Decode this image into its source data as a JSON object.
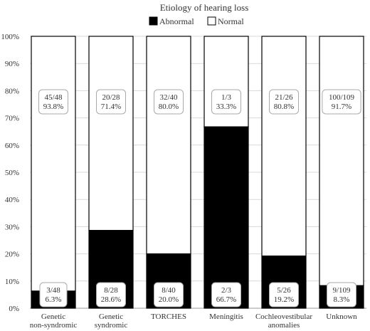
{
  "chart_data": {
    "type": "bar",
    "stacked": true,
    "title": "Etiology of hearing loss",
    "legend": {
      "placement": "top-center",
      "entries": [
        {
          "name": "Abnormal",
          "color": "#000000"
        },
        {
          "name": "Normal",
          "color": "#ffffff"
        }
      ]
    },
    "y_ticks": [
      "0%",
      "10%",
      "20%",
      "30%",
      "40%",
      "50%",
      "60%",
      "70%",
      "80%",
      "90%",
      "100%"
    ],
    "ylim": [
      0,
      100
    ],
    "grid": true,
    "categories": [
      [
        "Genetic",
        "non-syndromic"
      ],
      [
        "Genetic",
        "syndromic"
      ],
      [
        "TORCHES"
      ],
      [
        "Meningitis"
      ],
      [
        "Cochleovestibular",
        "anomalies"
      ],
      [
        "Unknown"
      ]
    ],
    "series": [
      {
        "name": "Abnormal",
        "values": [
          6.3,
          28.6,
          20.0,
          66.7,
          19.2,
          8.3
        ],
        "labels": [
          [
            "3/48",
            "6.3%"
          ],
          [
            "8/28",
            "28.6%"
          ],
          [
            "8/40",
            "20.0%"
          ],
          [
            "2/3",
            "66.7%"
          ],
          [
            "5/26",
            "19.2%"
          ],
          [
            "9/109",
            "8.3%"
          ]
        ]
      },
      {
        "name": "Normal",
        "values": [
          93.8,
          71.4,
          80.0,
          33.3,
          80.8,
          91.7
        ],
        "labels": [
          [
            "45/48",
            "93.8%"
          ],
          [
            "20/28",
            "71.4%"
          ],
          [
            "32/40",
            "80.0%"
          ],
          [
            "1/3",
            "33.3%"
          ],
          [
            "21/26",
            "80.8%"
          ],
          [
            "100/109",
            "91.7%"
          ]
        ]
      }
    ]
  }
}
